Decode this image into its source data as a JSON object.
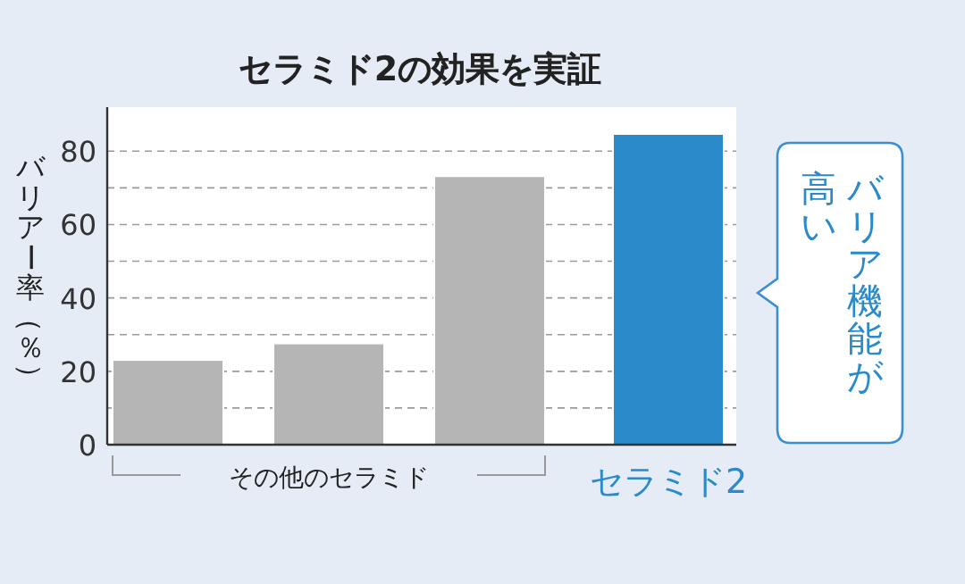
{
  "chart_data": {
    "type": "bar",
    "title": "セラミド2の効果を実証",
    "ylabel": "バリアー率（％）",
    "categories": [
      null,
      null,
      null,
      "セラミド2"
    ],
    "values": [
      23.1,
      27.6,
      73.2,
      84.7
    ],
    "colors": [
      "#b5b5b5",
      "#b5b5b5",
      "#b5b5b5",
      "#2b8ac9"
    ],
    "ylim": [
      0,
      92
    ],
    "yticks": [
      0,
      {
        "value": 10,
        "label": null
      },
      20,
      {
        "value": 30,
        "label": null
      },
      40,
      {
        "value": 50,
        "label": null
      },
      60,
      {
        "value": 70,
        "label": null
      },
      80
    ],
    "grid": "y",
    "annotations": [
      "その他のセラミド",
      "バリア機能が",
      "高い"
    ]
  }
}
